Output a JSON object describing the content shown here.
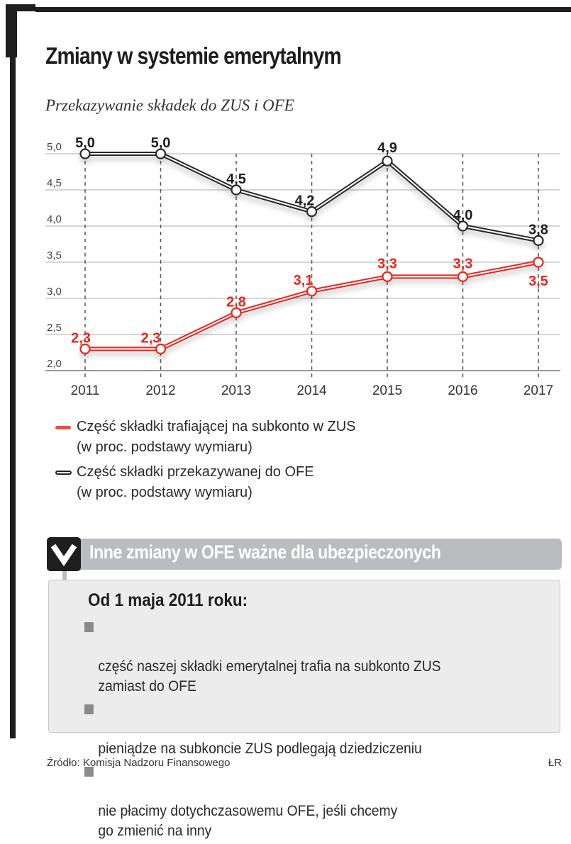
{
  "title": "Zmiany w systemie emerytalnym",
  "subtitle": "Przekazywanie składek do ZUS i OFE",
  "chart_data": {
    "type": "line",
    "title": "Przekazywanie składek do ZUS i OFE",
    "xlabel": "",
    "ylabel": "",
    "x": [
      "2011",
      "2012",
      "2013",
      "2014",
      "2015",
      "2016",
      "2017"
    ],
    "ylim": [
      2.0,
      5.0
    ],
    "yticks": [
      2.0,
      2.5,
      3.0,
      3.5,
      4.0,
      4.5,
      5.0
    ],
    "ytick_labels": [
      "2,0",
      "2,5",
      "3,0",
      "3,5",
      "4,0",
      "4,5",
      "5,0"
    ],
    "grid": "horizontal solid, vertical dashed",
    "series": [
      {
        "name": "Część składki przekazywanej do OFE (w proc. podstawy wymiaru)",
        "color": "#222222",
        "values": [
          5.0,
          5.0,
          4.5,
          4.2,
          4.9,
          4.0,
          3.8
        ],
        "labels": [
          "5,0",
          "5,0",
          "4,5",
          "4,2",
          "4,9",
          "4,0",
          "3,8"
        ]
      },
      {
        "name": "Część składki trafiającej na subkonto w ZUS (w proc. podstawy wymiaru)",
        "color": "#e8261c",
        "values": [
          2.3,
          2.3,
          2.8,
          3.1,
          3.3,
          3.3,
          3.5
        ],
        "labels": [
          "2,3",
          "2,3",
          "2,8",
          "3,1",
          "3,3",
          "3,3",
          "3,5"
        ]
      }
    ],
    "legend_placement": "bottom-left"
  },
  "legend": [
    {
      "line1": "Część składki trafiającej na subkonto w ZUS",
      "line2": "(w proc. podstawy wymiaru)",
      "color": "#e8503a"
    },
    {
      "line1": "Część składki przekazywanej do OFE",
      "line2": "(w proc. podstawy wymiaru)",
      "color": "#222222"
    }
  ],
  "infobox": {
    "icon": "chevron-down-icon",
    "header": "Inne zmiany w OFE ważne dla ubezpieczonych",
    "heading": "Od 1 maja 2011 roku:",
    "items": [
      "część naszej składki emerytalnej trafia na subkonto ZUS\nzamiast do OFE",
      "pieniądze na subkoncie ZUS podlegają dziedziczeniu",
      "nie płacimy dotychczasowemu OFE, jeśli chcemy\ngo zmienić na inny"
    ]
  },
  "source": "Źródło: Komisja Nadzoru Finansowego",
  "author": "ŁR"
}
